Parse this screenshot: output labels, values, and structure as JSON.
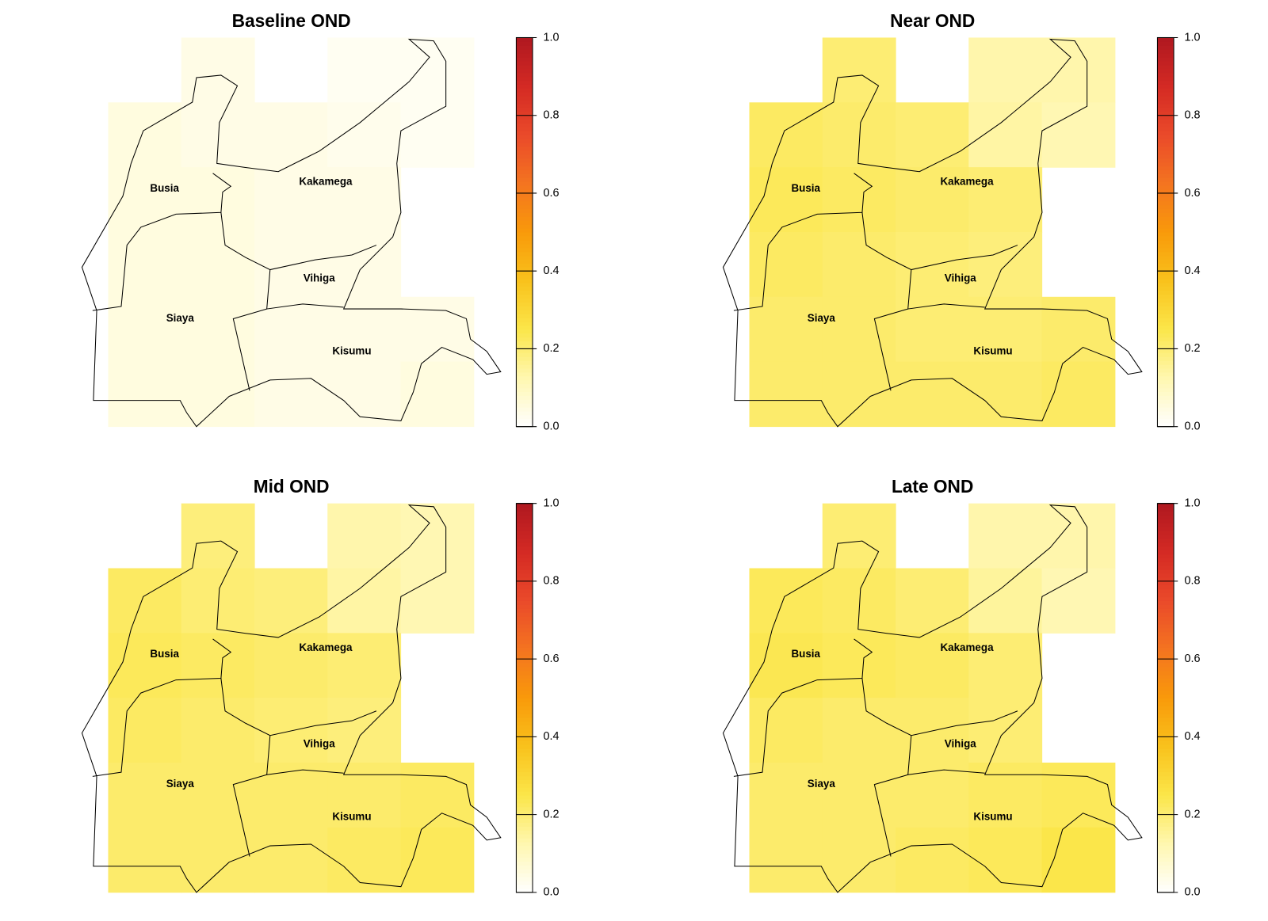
{
  "maps": {
    "colorbar": {
      "lim": [
        0,
        1
      ],
      "ticks": [
        {
          "value": 0,
          "label": "0.0"
        },
        0.2,
        0.4,
        0.6,
        0.8,
        {
          "value": 1,
          "label": "1.0"
        }
      ],
      "colormap": [
        "#ffffff",
        "#fff7b0",
        "#fbe64a",
        "#f9c21c",
        "#f99a0a",
        "#f47420",
        "#ea4a2a",
        "#d42a24",
        "#b01820"
      ]
    },
    "regions": [
      "Busia",
      "Kakamega",
      "Vihiga",
      "Siaya",
      "Kisumu"
    ],
    "panels": [
      {
        "title": "Baseline OND",
        "values": [
          [
            null,
            0.04,
            null,
            0.02,
            0.02
          ],
          [
            0.05,
            0.04,
            0.04,
            0.03,
            0.02
          ],
          [
            0.05,
            0.05,
            0.04,
            0.04,
            null
          ],
          [
            0.05,
            0.05,
            0.04,
            0.04,
            null
          ],
          [
            0.05,
            0.05,
            0.04,
            0.04,
            0.04
          ],
          [
            0.05,
            0.05,
            0.04,
            0.04,
            0.05
          ]
        ]
      },
      {
        "title": "Near OND",
        "values": [
          [
            null,
            0.2,
            null,
            0.13,
            0.13
          ],
          [
            0.22,
            0.21,
            0.2,
            0.14,
            0.12
          ],
          [
            0.23,
            0.22,
            0.21,
            0.2,
            null
          ],
          [
            0.22,
            0.21,
            0.2,
            0.19,
            null
          ],
          [
            0.21,
            0.21,
            0.2,
            0.2,
            0.21
          ],
          [
            0.21,
            0.21,
            0.21,
            0.21,
            0.22
          ]
        ]
      },
      {
        "title": "Mid OND",
        "values": [
          [
            null,
            0.19,
            null,
            0.13,
            0.12
          ],
          [
            0.22,
            0.2,
            0.19,
            0.14,
            0.12
          ],
          [
            0.23,
            0.22,
            0.21,
            0.2,
            null
          ],
          [
            0.22,
            0.21,
            0.2,
            0.19,
            null
          ],
          [
            0.21,
            0.21,
            0.21,
            0.21,
            0.22
          ],
          [
            0.21,
            0.21,
            0.21,
            0.22,
            0.23
          ]
        ]
      },
      {
        "title": "Late OND",
        "values": [
          [
            null,
            0.2,
            null,
            0.13,
            0.13
          ],
          [
            0.23,
            0.22,
            0.2,
            0.15,
            0.12
          ],
          [
            0.24,
            0.23,
            0.22,
            0.2,
            null
          ],
          [
            0.22,
            0.21,
            0.21,
            0.2,
            null
          ],
          [
            0.21,
            0.21,
            0.21,
            0.22,
            0.23
          ],
          [
            0.21,
            0.21,
            0.22,
            0.23,
            0.25
          ]
        ]
      }
    ]
  }
}
